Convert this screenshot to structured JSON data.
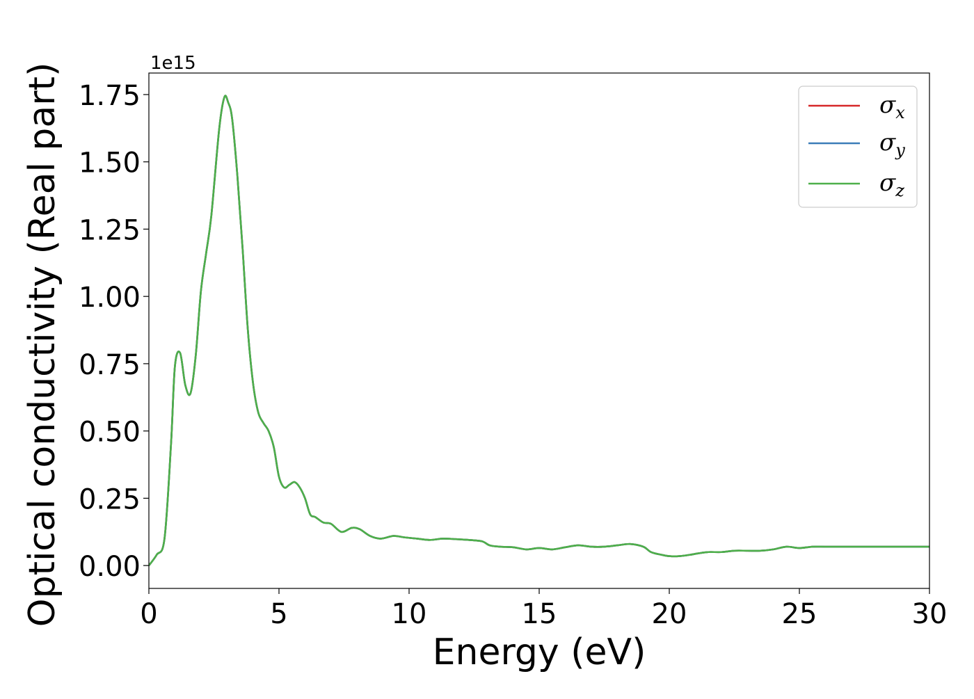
{
  "chart_data": {
    "type": "line",
    "xlabel": "Energy (eV)",
    "ylabel": "Optical conductivity (Real part)",
    "y_offset_text": "1e15",
    "y_scale": 1000000000000000.0,
    "xlim": [
      0,
      30
    ],
    "ylim": [
      -0.085,
      1.83
    ],
    "x_ticks": [
      0,
      5,
      10,
      15,
      20,
      25,
      30
    ],
    "y_ticks": [
      0.0,
      0.25,
      0.5,
      0.75,
      1.0,
      1.25,
      1.5,
      1.75
    ],
    "x_tick_labels": [
      "0",
      "5",
      "10",
      "15",
      "20",
      "25",
      "30"
    ],
    "y_tick_labels": [
      "0.00",
      "0.25",
      "0.50",
      "0.75",
      "1.00",
      "1.25",
      "1.50",
      "1.75"
    ],
    "grid": false,
    "legend_position": "top-right",
    "legend": [
      {
        "symbol": "σ",
        "sub": "x",
        "color": "#d62728"
      },
      {
        "symbol": "σ",
        "sub": "y",
        "color": "#3b7db8"
      },
      {
        "symbol": "σ",
        "sub": "z",
        "color": "#4daf4a"
      }
    ],
    "x": [
      0,
      0.3,
      0.6,
      0.85,
      1.0,
      1.2,
      1.4,
      1.6,
      1.8,
      2.0,
      2.2,
      2.4,
      2.7,
      2.9,
      3.05,
      3.2,
      3.4,
      3.6,
      3.8,
      4.0,
      4.2,
      4.4,
      4.6,
      4.8,
      5.0,
      5.2,
      5.4,
      5.6,
      5.8,
      6.0,
      6.2,
      6.4,
      6.7,
      7.0,
      7.4,
      7.8,
      8.1,
      8.5,
      8.9,
      9.4,
      9.8,
      10.3,
      10.8,
      11.3,
      11.8,
      12.3,
      12.8,
      13.1,
      13.5,
      14.0,
      14.5,
      15.0,
      15.5,
      16.0,
      16.5,
      17.0,
      17.5,
      18.0,
      18.5,
      19.0,
      19.3,
      19.7,
      20.0,
      20.4,
      20.8,
      21.1,
      21.5,
      22.0,
      22.5,
      23.0,
      23.5,
      24.0,
      24.5,
      25.0,
      25.5,
      26.0,
      26.5,
      27.0,
      27.5,
      28.0,
      28.5,
      29.0,
      29.5,
      30.0
    ],
    "series": [
      {
        "name": "σx",
        "color": "#d62728",
        "values": [
          0.0,
          0.04,
          0.1,
          0.45,
          0.74,
          0.79,
          0.67,
          0.64,
          0.78,
          1.02,
          1.16,
          1.3,
          1.62,
          1.74,
          1.72,
          1.66,
          1.45,
          1.18,
          0.88,
          0.68,
          0.57,
          0.53,
          0.5,
          0.44,
          0.33,
          0.29,
          0.3,
          0.31,
          0.29,
          0.25,
          0.19,
          0.18,
          0.16,
          0.155,
          0.125,
          0.14,
          0.135,
          0.11,
          0.1,
          0.11,
          0.105,
          0.1,
          0.095,
          0.1,
          0.098,
          0.095,
          0.09,
          0.075,
          0.07,
          0.068,
          0.06,
          0.065,
          0.06,
          0.068,
          0.075,
          0.07,
          0.07,
          0.075,
          0.08,
          0.07,
          0.05,
          0.04,
          0.035,
          0.035,
          0.04,
          0.045,
          0.05,
          0.05,
          0.055,
          0.055,
          0.055,
          0.06,
          0.07,
          0.065,
          0.07,
          0.07,
          0.07,
          0.07,
          0.07,
          0.07,
          0.07,
          0.07,
          0.07,
          0.07
        ]
      },
      {
        "name": "σy",
        "color": "#3b7db8",
        "values": [
          0.0,
          0.04,
          0.1,
          0.45,
          0.74,
          0.79,
          0.67,
          0.64,
          0.78,
          1.02,
          1.16,
          1.3,
          1.62,
          1.74,
          1.72,
          1.66,
          1.45,
          1.18,
          0.88,
          0.68,
          0.57,
          0.53,
          0.5,
          0.44,
          0.33,
          0.29,
          0.3,
          0.31,
          0.29,
          0.25,
          0.19,
          0.18,
          0.16,
          0.155,
          0.125,
          0.14,
          0.135,
          0.11,
          0.1,
          0.11,
          0.105,
          0.1,
          0.095,
          0.1,
          0.098,
          0.095,
          0.09,
          0.075,
          0.07,
          0.068,
          0.06,
          0.065,
          0.06,
          0.068,
          0.075,
          0.07,
          0.07,
          0.075,
          0.08,
          0.07,
          0.05,
          0.04,
          0.035,
          0.035,
          0.04,
          0.045,
          0.05,
          0.05,
          0.055,
          0.055,
          0.055,
          0.06,
          0.07,
          0.065,
          0.07,
          0.07,
          0.07,
          0.07,
          0.07,
          0.07,
          0.07,
          0.07,
          0.07,
          0.07
        ]
      },
      {
        "name": "σz",
        "color": "#4daf4a",
        "values": [
          0.0,
          0.04,
          0.1,
          0.45,
          0.74,
          0.79,
          0.67,
          0.64,
          0.78,
          1.02,
          1.16,
          1.3,
          1.62,
          1.74,
          1.72,
          1.66,
          1.45,
          1.18,
          0.88,
          0.68,
          0.57,
          0.53,
          0.5,
          0.44,
          0.33,
          0.29,
          0.3,
          0.31,
          0.29,
          0.25,
          0.19,
          0.18,
          0.16,
          0.155,
          0.125,
          0.14,
          0.135,
          0.11,
          0.1,
          0.11,
          0.105,
          0.1,
          0.095,
          0.1,
          0.098,
          0.095,
          0.09,
          0.075,
          0.07,
          0.068,
          0.06,
          0.065,
          0.06,
          0.068,
          0.075,
          0.07,
          0.07,
          0.075,
          0.08,
          0.07,
          0.05,
          0.04,
          0.035,
          0.035,
          0.04,
          0.045,
          0.05,
          0.05,
          0.055,
          0.055,
          0.055,
          0.06,
          0.07,
          0.065,
          0.07,
          0.07,
          0.07,
          0.07,
          0.07,
          0.07,
          0.07,
          0.07,
          0.07,
          0.07
        ]
      }
    ]
  }
}
